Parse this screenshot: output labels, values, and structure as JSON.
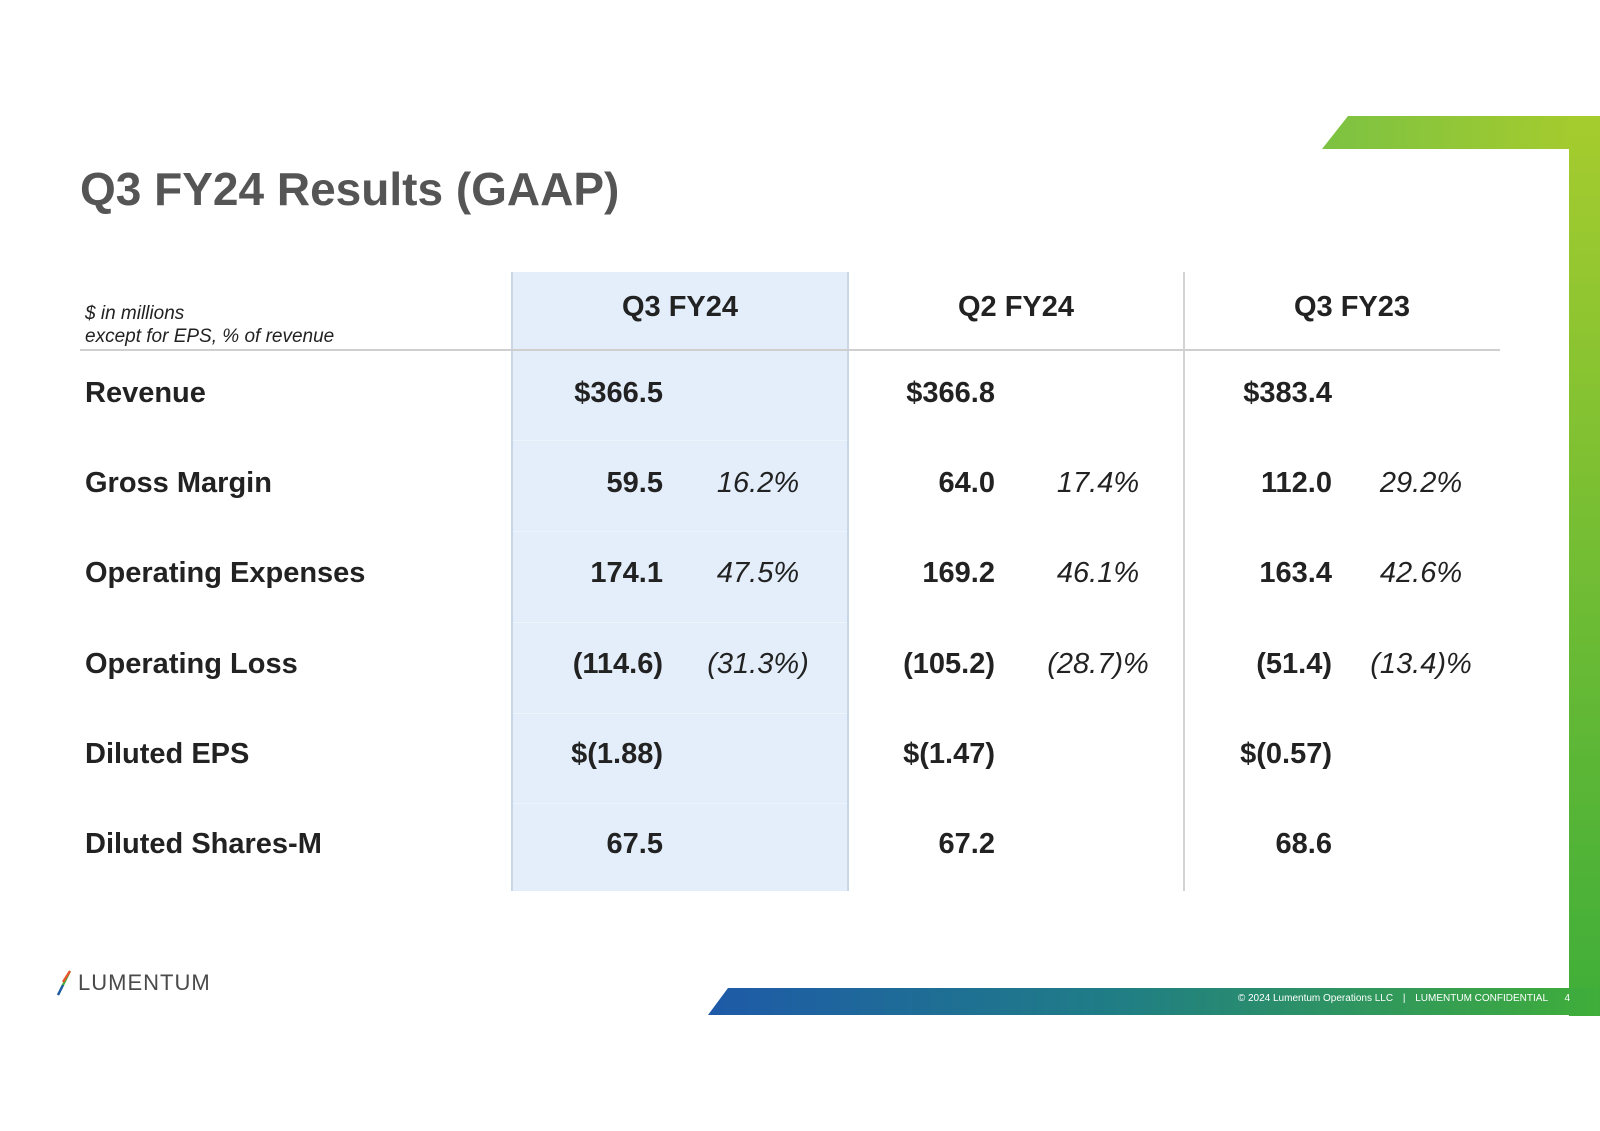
{
  "title": "Q3 FY24 Results (GAAP)",
  "units_note": {
    "line1": "$ in millions",
    "line2": "except for EPS, % of revenue"
  },
  "columns": [
    "Q3 FY24",
    "Q2 FY24",
    "Q3 FY23"
  ],
  "rows": [
    {
      "label": "Revenue",
      "cells": [
        {
          "value": "$366.5",
          "pct": ""
        },
        {
          "value": "$366.8",
          "pct": ""
        },
        {
          "value": "$383.4",
          "pct": ""
        }
      ]
    },
    {
      "label": "Gross Margin",
      "cells": [
        {
          "value": "59.5",
          "pct": "16.2%"
        },
        {
          "value": "64.0",
          "pct": "17.4%"
        },
        {
          "value": "112.0",
          "pct": "29.2%"
        }
      ]
    },
    {
      "label": "Operating Expenses",
      "cells": [
        {
          "value": "174.1",
          "pct": "47.5%"
        },
        {
          "value": "169.2",
          "pct": "46.1%"
        },
        {
          "value": "163.4",
          "pct": "42.6%"
        }
      ]
    },
    {
      "label": "Operating Loss",
      "cells": [
        {
          "value": "(114.6)",
          "pct": "(31.3%)"
        },
        {
          "value": "(105.2)",
          "pct": "(28.7)%"
        },
        {
          "value": "(51.4)",
          "pct": "(13.4)%"
        }
      ]
    },
    {
      "label": "Diluted EPS",
      "cells": [
        {
          "value": "$(1.88)",
          "pct": ""
        },
        {
          "value": "$(1.47)",
          "pct": ""
        },
        {
          "value": "$(0.57)",
          "pct": ""
        }
      ]
    },
    {
      "label": "Diluted Shares-M",
      "cells": [
        {
          "value": "67.5",
          "pct": ""
        },
        {
          "value": "67.2",
          "pct": ""
        },
        {
          "value": "68.6",
          "pct": ""
        }
      ]
    }
  ],
  "logo": {
    "text": "LUMENTUM"
  },
  "footer": {
    "copyright": "© 2024 Lumentum Operations LLC",
    "separator": "|",
    "confidential": "LUMENTUM CONFIDENTIAL",
    "page": "4"
  },
  "colors": {
    "title": "#555555",
    "highlight": "#e3eefa",
    "green_light": "#a6cc2e",
    "green_dark": "#3fae39",
    "blue": "#1e5aa8"
  }
}
